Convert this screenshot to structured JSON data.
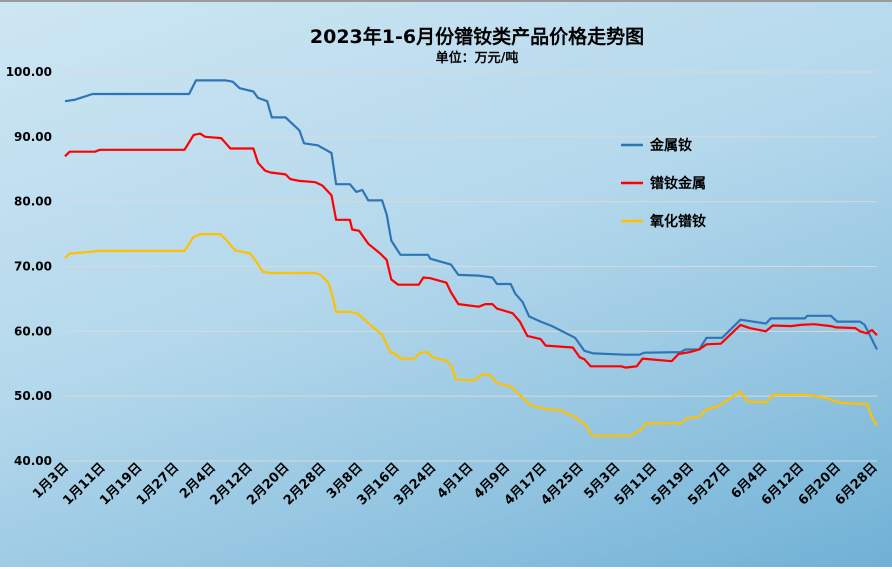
{
  "chart_data": {
    "type": "line",
    "title": "2023年1-6月份镨钕类产品价格走势图",
    "subtitle": "单位：万元/吨",
    "xlabel": "",
    "ylabel": "",
    "ylim": [
      40,
      100
    ],
    "yticks": [
      "40.00",
      "50.00",
      "60.00",
      "70.00",
      "80.00",
      "90.00",
      "100.00"
    ],
    "ytick_values": [
      40,
      50,
      60,
      70,
      80,
      90,
      100
    ],
    "grid": true,
    "legend_position": "right",
    "x_unit": "days since 1月3日",
    "xlim": [
      0,
      176.7
    ],
    "categories": [
      "1月3日",
      "1月11日",
      "1月19日",
      "1月27日",
      "2月4日",
      "2月12日",
      "2月20日",
      "2月28日",
      "3月8日",
      "3月16日",
      "3月24日",
      "4月1日",
      "4月9日",
      "4月17日",
      "4月25日",
      "5月3日",
      "5月11日",
      "5月19日",
      "5月27日",
      "6月4日",
      "6月12日",
      "6月20日",
      "6月28日"
    ],
    "category_days": [
      0,
      8,
      16,
      24,
      32,
      40,
      48,
      56,
      64,
      72,
      80,
      88,
      96,
      104,
      112,
      120,
      128,
      136,
      144,
      152,
      160,
      168,
      176
    ],
    "series": [
      {
        "name": "金属钕",
        "color": "#2e75b6",
        "points": [
          [
            0,
            95.5
          ],
          [
            2,
            95.7
          ],
          [
            6,
            96.6
          ],
          [
            27,
            96.6
          ],
          [
            28.5,
            98.7
          ],
          [
            35,
            98.7
          ],
          [
            36.5,
            98.5
          ],
          [
            38,
            97.5
          ],
          [
            41,
            97
          ],
          [
            42,
            96
          ],
          [
            44,
            95.5
          ],
          [
            45,
            93
          ],
          [
            48,
            93
          ],
          [
            49.5,
            92
          ],
          [
            51,
            91
          ],
          [
            52,
            89
          ],
          [
            55,
            88.7
          ],
          [
            58,
            87.5
          ],
          [
            59,
            82.7
          ],
          [
            62,
            82.7
          ],
          [
            63.4,
            81.5
          ],
          [
            64.7,
            81.8
          ],
          [
            66,
            80.2
          ],
          [
            69,
            80.2
          ],
          [
            70,
            78
          ],
          [
            71,
            74
          ],
          [
            73,
            71.8
          ],
          [
            79,
            71.8
          ],
          [
            79.5,
            71.2
          ],
          [
            84,
            70.3
          ],
          [
            85.6,
            68.7
          ],
          [
            90,
            68.6
          ],
          [
            93,
            68.3
          ],
          [
            94,
            67.3
          ],
          [
            97,
            67.3
          ],
          [
            98,
            65.8
          ],
          [
            99.6,
            64.5
          ],
          [
            101,
            62.3
          ],
          [
            103.5,
            61.5
          ],
          [
            106,
            60.8
          ],
          [
            111,
            59
          ],
          [
            113,
            57
          ],
          [
            115,
            56.6
          ],
          [
            122,
            56.4
          ],
          [
            125,
            56.4
          ],
          [
            126,
            56.7
          ],
          [
            134,
            56.8
          ],
          [
            135,
            57.2
          ],
          [
            138,
            57.2
          ],
          [
            139.6,
            59
          ],
          [
            143,
            59
          ],
          [
            147,
            61.8
          ],
          [
            152.5,
            61.2
          ],
          [
            153.6,
            62
          ],
          [
            161,
            62
          ],
          [
            161.5,
            62.4
          ],
          [
            166.7,
            62.4
          ],
          [
            168,
            61.5
          ],
          [
            173,
            61.5
          ],
          [
            174,
            61
          ],
          [
            174.5,
            60.3
          ],
          [
            176.7,
            57.2
          ]
        ]
      },
      {
        "name": "镨钕金属",
        "color": "#ff0000",
        "points": [
          [
            0,
            87
          ],
          [
            1,
            87.7
          ],
          [
            6.5,
            87.7
          ],
          [
            7.6,
            88
          ],
          [
            26,
            88
          ],
          [
            28,
            90.3
          ],
          [
            29.4,
            90.5
          ],
          [
            30.5,
            90
          ],
          [
            34,
            89.8
          ],
          [
            35,
            89
          ],
          [
            36,
            88.2
          ],
          [
            41,
            88.2
          ],
          [
            42,
            86
          ],
          [
            43.5,
            84.8
          ],
          [
            44.7,
            84.5
          ],
          [
            48,
            84.2
          ],
          [
            49,
            83.5
          ],
          [
            51,
            83.2
          ],
          [
            54.5,
            83
          ],
          [
            56,
            82.5
          ],
          [
            58,
            81
          ],
          [
            59,
            77.2
          ],
          [
            62,
            77.2
          ],
          [
            62.5,
            75.7
          ],
          [
            64,
            75.5
          ],
          [
            66,
            73.5
          ],
          [
            68.6,
            72
          ],
          [
            70,
            71
          ],
          [
            71,
            68
          ],
          [
            72.5,
            67.2
          ],
          [
            77,
            67.2
          ],
          [
            78,
            68.3
          ],
          [
            79.5,
            68.2
          ],
          [
            83,
            67.5
          ],
          [
            84,
            66
          ],
          [
            85.6,
            64.2
          ],
          [
            90,
            63.8
          ],
          [
            91.5,
            64.2
          ],
          [
            93,
            64.2
          ],
          [
            94,
            63.5
          ],
          [
            97.4,
            62.8
          ],
          [
            99,
            61.5
          ],
          [
            100.6,
            59.3
          ],
          [
            103.5,
            58.8
          ],
          [
            104.6,
            57.8
          ],
          [
            110.5,
            57.5
          ],
          [
            112,
            56
          ],
          [
            113,
            55.7
          ],
          [
            114.4,
            54.6
          ],
          [
            121,
            54.6
          ],
          [
            122,
            54.4
          ],
          [
            124.4,
            54.6
          ],
          [
            125.7,
            55.8
          ],
          [
            132,
            55.4
          ],
          [
            133.5,
            56.5
          ],
          [
            136,
            56.8
          ],
          [
            138,
            57.2
          ],
          [
            139.6,
            58
          ],
          [
            142.7,
            58.1
          ],
          [
            147,
            61
          ],
          [
            149,
            60.5
          ],
          [
            152.5,
            60
          ],
          [
            154,
            60.9
          ],
          [
            158,
            60.8
          ],
          [
            160,
            61
          ],
          [
            163,
            61.1
          ],
          [
            166.7,
            60.8
          ],
          [
            167.8,
            60.6
          ],
          [
            172,
            60.5
          ],
          [
            173,
            60
          ],
          [
            174.5,
            59.7
          ],
          [
            175.6,
            60.2
          ],
          [
            176.7,
            59.4
          ]
        ]
      },
      {
        "name": "氧化镨钕",
        "color": "#ffc000",
        "points": [
          [
            0,
            71.3
          ],
          [
            1,
            72
          ],
          [
            4.4,
            72.2
          ],
          [
            7.6,
            72.4
          ],
          [
            26,
            72.4
          ],
          [
            27.9,
            74.5
          ],
          [
            29.4,
            75
          ],
          [
            33.8,
            75
          ],
          [
            35,
            74.2
          ],
          [
            37,
            72.5
          ],
          [
            40.3,
            72
          ],
          [
            41.6,
            70.8
          ],
          [
            43,
            69.2
          ],
          [
            44.7,
            69
          ],
          [
            54.5,
            69
          ],
          [
            55.6,
            68.7
          ],
          [
            57.3,
            67.5
          ],
          [
            58,
            66
          ],
          [
            59,
            63
          ],
          [
            62,
            63
          ],
          [
            63.8,
            62.7
          ],
          [
            65.6,
            61.5
          ],
          [
            69,
            59.5
          ],
          [
            70.8,
            56.8
          ],
          [
            71.9,
            56.5
          ],
          [
            73,
            55.8
          ],
          [
            76,
            55.8
          ],
          [
            77.3,
            56.7
          ],
          [
            79,
            56.8
          ],
          [
            80,
            56
          ],
          [
            82.8,
            55.5
          ],
          [
            84,
            54.8
          ],
          [
            85,
            52.6
          ],
          [
            89,
            52.4
          ],
          [
            90.8,
            53.4
          ],
          [
            92.6,
            53.2
          ],
          [
            94,
            52
          ],
          [
            97,
            51.5
          ],
          [
            100,
            49.5
          ],
          [
            101.3,
            48.6
          ],
          [
            104.6,
            48
          ],
          [
            107.8,
            47.8
          ],
          [
            111,
            46.8
          ],
          [
            113.3,
            45.5
          ],
          [
            114.8,
            43.9
          ],
          [
            123,
            43.9
          ],
          [
            125.3,
            44.8
          ],
          [
            126.4,
            45.8
          ],
          [
            134,
            45.8
          ],
          [
            135.3,
            46.6
          ],
          [
            138,
            46.8
          ],
          [
            139.6,
            48
          ],
          [
            142,
            48.4
          ],
          [
            147,
            50.7
          ],
          [
            148.5,
            49.2
          ],
          [
            152.5,
            49
          ],
          [
            154,
            50.2
          ],
          [
            162,
            50.2
          ],
          [
            165.6,
            49.7
          ],
          [
            168.4,
            49
          ],
          [
            173,
            48.8
          ],
          [
            174.5,
            48.8
          ],
          [
            175.6,
            46.8
          ],
          [
            176.7,
            45.5
          ]
        ]
      }
    ]
  }
}
